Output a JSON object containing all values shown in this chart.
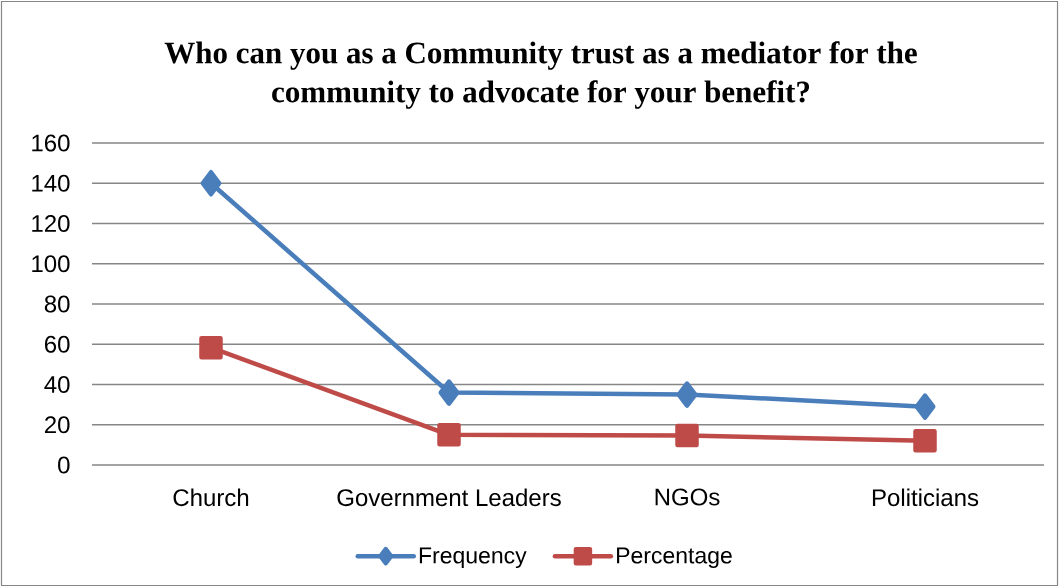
{
  "chart_data": {
    "type": "line",
    "title": "Who can you as a Community trust as a mediator for the community to advocate for your benefit?",
    "categories": [
      "Church",
      "Government Leaders",
      "NGOs",
      "Politicians"
    ],
    "series": [
      {
        "name": "Frequency",
        "color": "#4a7ebb",
        "marker": "diamond",
        "values": [
          140,
          36,
          35,
          29
        ]
      },
      {
        "name": "Percentage",
        "color": "#be4b48",
        "marker": "square",
        "values": [
          58.3,
          15,
          14.6,
          12.1
        ]
      }
    ],
    "ylim": [
      0,
      160
    ],
    "yticks": [
      0,
      20,
      40,
      60,
      80,
      100,
      120,
      140,
      160
    ],
    "grid": "y",
    "legend": "bottom",
    "line_style": "solid"
  }
}
